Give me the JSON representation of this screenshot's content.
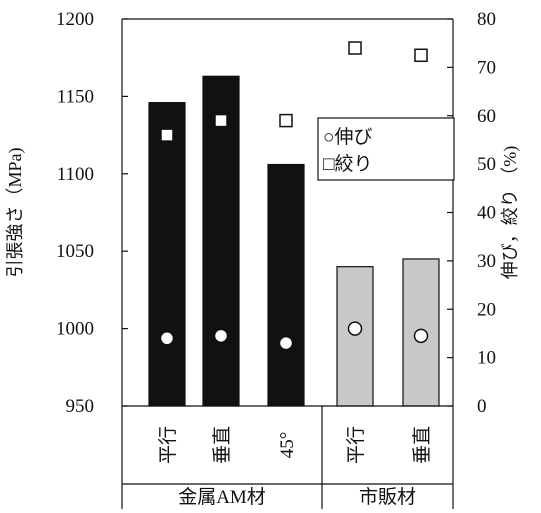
{
  "chart_data": {
    "type": "bar",
    "categories": [
      "平行",
      "垂直",
      "45°",
      "平行",
      "垂直"
    ],
    "groups": [
      {
        "label": "金属AM材",
        "count": 3
      },
      {
        "label": "市販材",
        "count": 2
      }
    ],
    "ylabel": "引張強さ（MPa)",
    "y2label": "伸び，絞り （%)",
    "ylim": [
      950,
      1200
    ],
    "y2lim": [
      0,
      80
    ],
    "yticks": [
      950,
      1000,
      1050,
      1100,
      1150,
      1200
    ],
    "y2ticks": [
      0,
      10,
      20,
      30,
      40,
      50,
      60,
      70,
      80
    ],
    "series": [
      {
        "values": [
          1146,
          1163,
          1106,
          1040,
          1045
        ],
        "colors": [
          "#111111",
          "#111111",
          "#111111",
          "#c8c8c8",
          "#c8c8c8"
        ]
      },
      {
        "name": "伸び",
        "marker": "circle",
        "axis": "right",
        "values": [
          14,
          14.5,
          13,
          16,
          14.5
        ]
      },
      {
        "name": "絞り",
        "marker": "square",
        "axis": "right",
        "values": [
          56,
          59,
          59,
          74,
          72.5
        ]
      }
    ],
    "legend": {
      "placement": "right-middle",
      "entries": [
        "○伸び",
        "□絞り"
      ]
    }
  }
}
